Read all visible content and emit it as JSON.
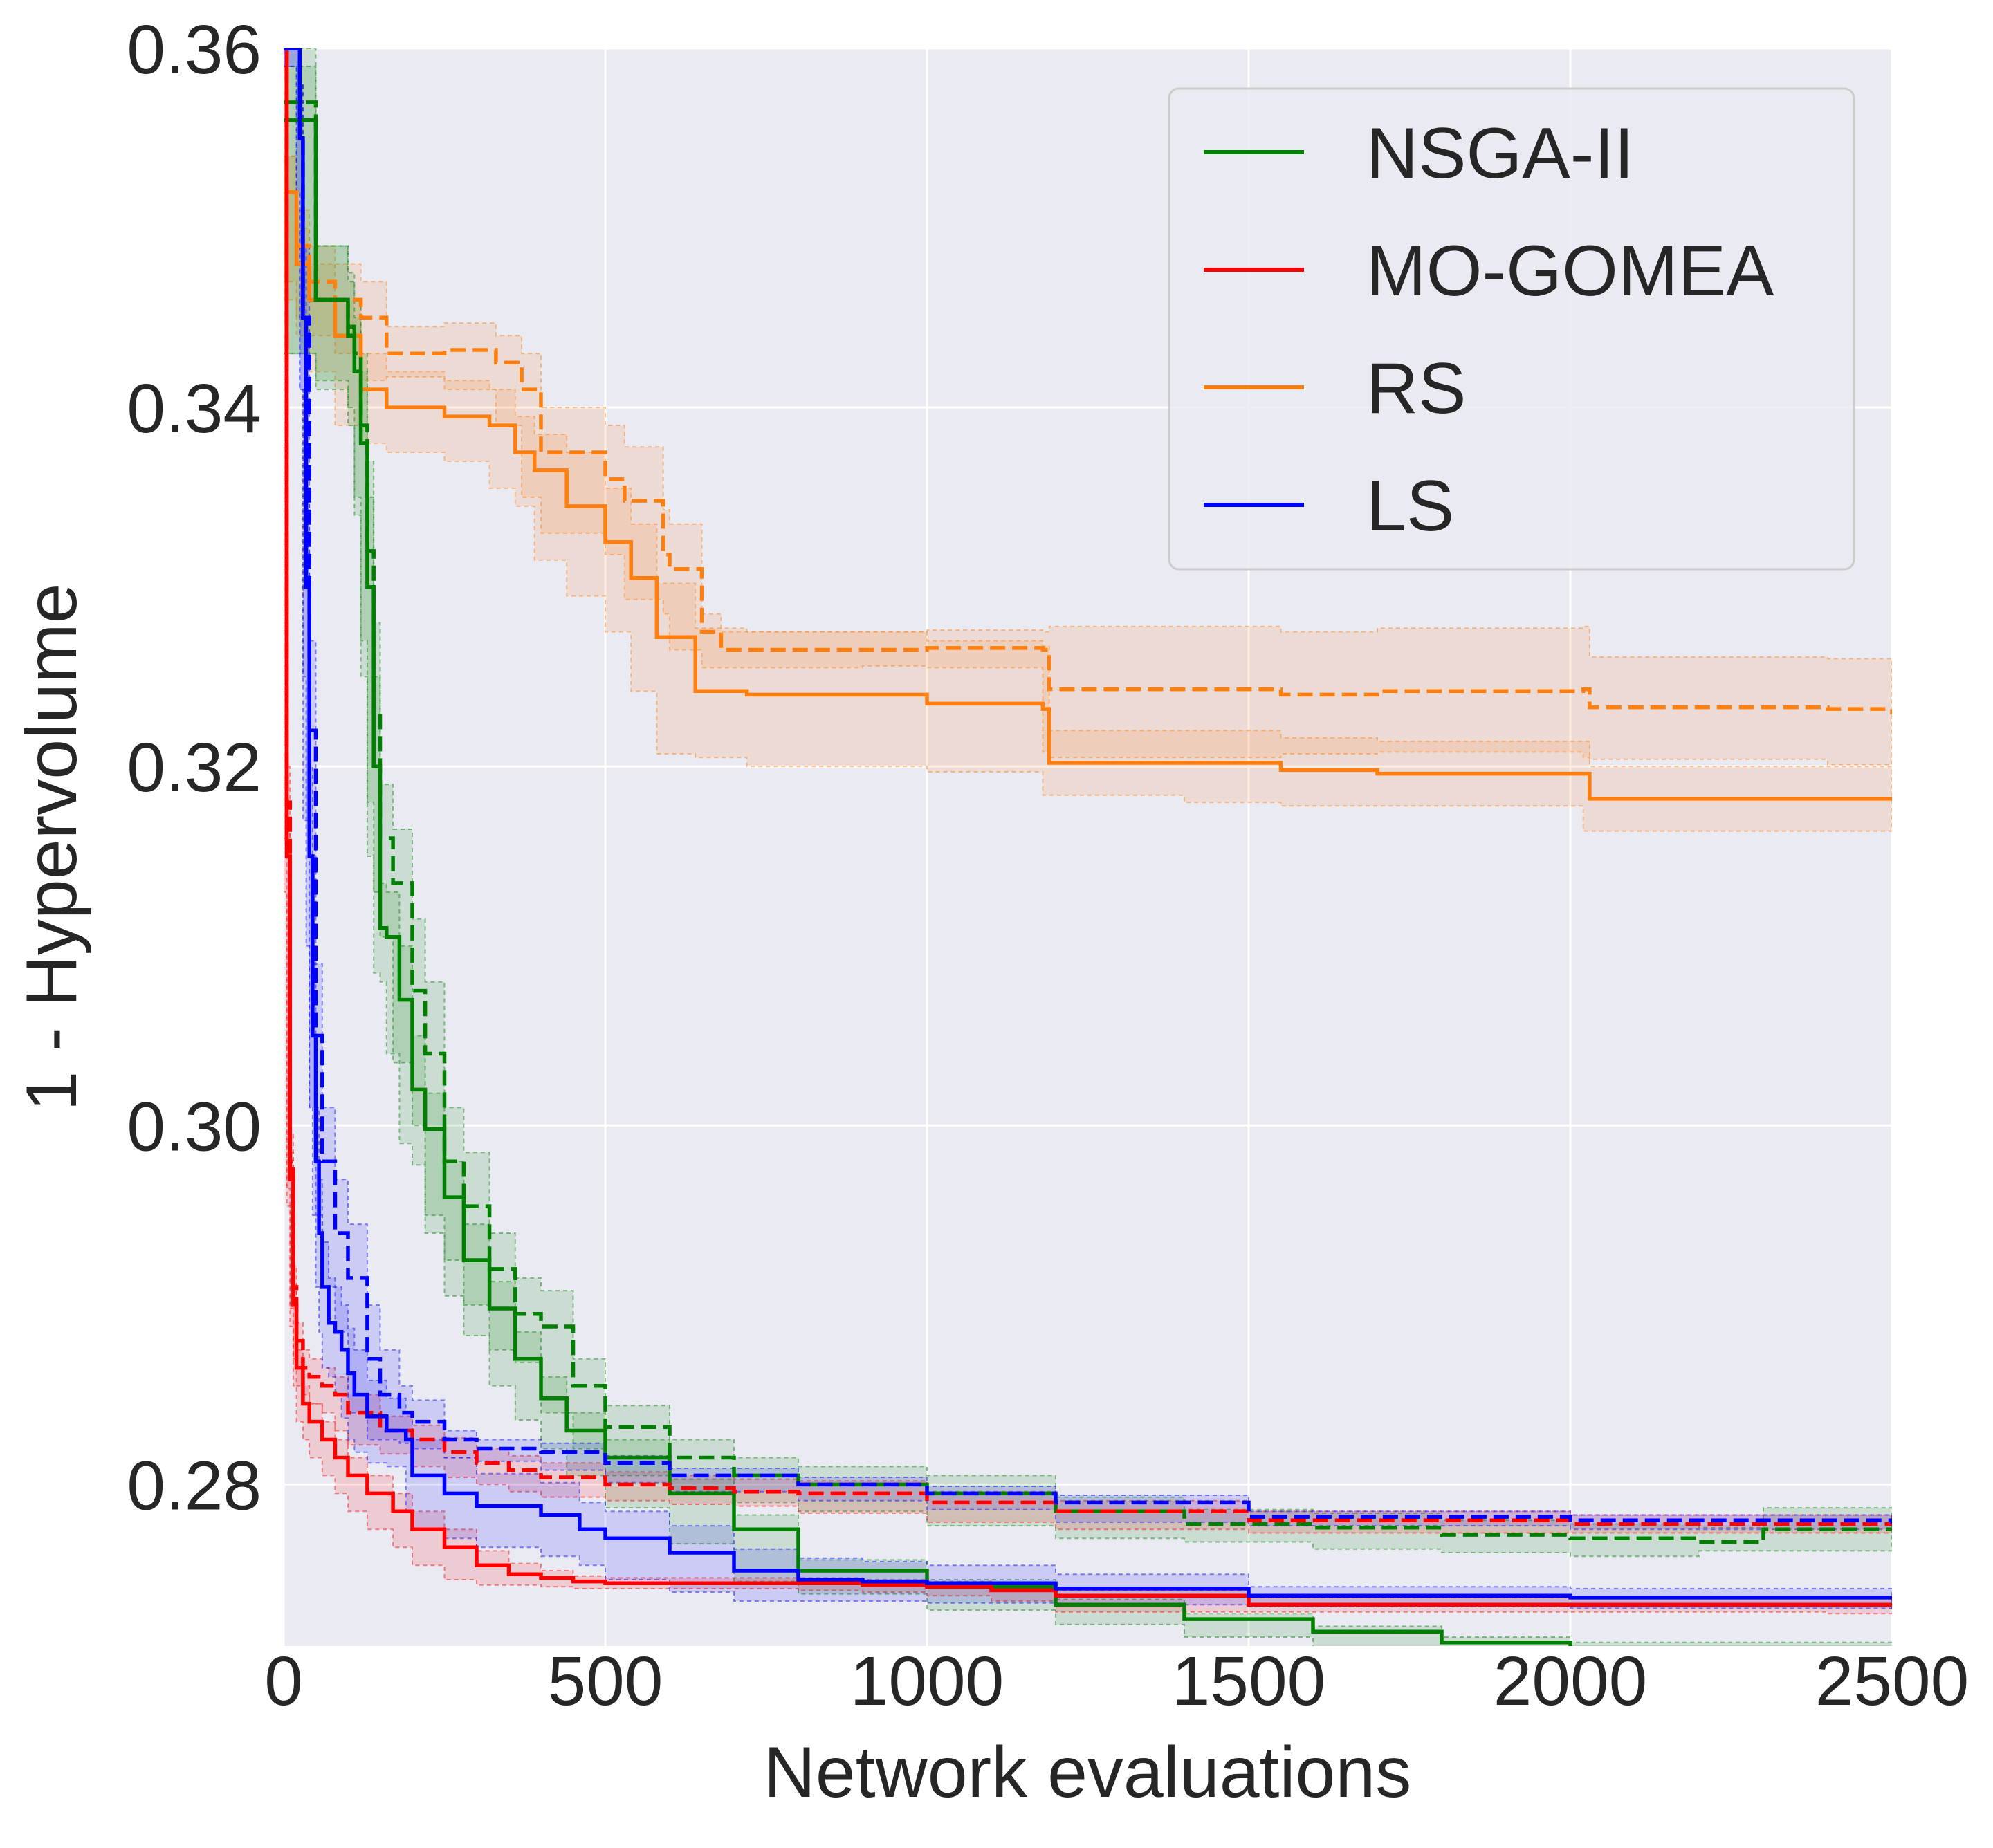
{
  "chart_data": {
    "type": "line",
    "title": "",
    "xlabel": "Network evaluations",
    "ylabel": "1 - Hypervolume",
    "xlim": [
      0,
      2500
    ],
    "ylim": [
      0.271,
      0.36
    ],
    "xticks": [
      0,
      500,
      1000,
      1500,
      2000,
      2500
    ],
    "xtick_labels": [
      "0",
      "500",
      "1000",
      "1500",
      "2000",
      "2500"
    ],
    "yticks": [
      0.28,
      0.3,
      0.32,
      0.34,
      0.36
    ],
    "ytick_labels": [
      "0.28",
      "0.30",
      "0.32",
      "0.34",
      "0.36"
    ],
    "grid": true,
    "background": "#eaeaf2",
    "legend_position": "top-right",
    "legend": [
      {
        "name": "NSGA-II",
        "color": "#008000"
      },
      {
        "name": "MO-GOMEA",
        "color": "#ff0000"
      },
      {
        "name": "RS",
        "color": "#ff7f0e"
      },
      {
        "name": "LS",
        "color": "#0000ff"
      }
    ],
    "series": [
      {
        "legend": "RS",
        "style": "solid",
        "color": "#ff7f0e",
        "x": [
          0,
          20,
          40,
          80,
          120,
          160,
          250,
          320,
          360,
          390,
          440,
          500,
          540,
          580,
          640,
          720,
          1000,
          1180,
          1190,
          1400,
          1550,
          1700,
          2020,
          2030,
          2500
        ],
        "y": [
          0.352,
          0.348,
          0.346,
          0.344,
          0.341,
          0.34,
          0.3395,
          0.339,
          0.3375,
          0.3365,
          0.3345,
          0.3325,
          0.3305,
          0.3272,
          0.3242,
          0.324,
          0.3235,
          0.3232,
          0.3202,
          0.3202,
          0.3198,
          0.3196,
          0.3196,
          0.3182,
          0.3182
        ],
        "band": [
          0.002,
          0.002,
          0.002,
          0.002,
          0.002,
          0.002,
          0.002,
          0.002,
          0.002,
          0.002,
          0.003,
          0.003,
          0.003,
          0.003,
          0.0035,
          0.0035,
          0.0035,
          0.0035,
          0.0018,
          0.0018,
          0.0018,
          0.0018,
          0.0018,
          0.0018,
          0.0018
        ]
      },
      {
        "legend": "RS",
        "style": "dashed",
        "color": "#ff7f0e",
        "x": [
          0,
          20,
          40,
          80,
          120,
          160,
          250,
          330,
          370,
          400,
          500,
          530,
          590,
          600,
          650,
          680,
          900,
          1000,
          1180,
          1190,
          1550,
          1700,
          2020,
          2030,
          2400,
          2500
        ],
        "y": [
          0.352,
          0.349,
          0.347,
          0.346,
          0.345,
          0.343,
          0.3432,
          0.3425,
          0.341,
          0.3375,
          0.336,
          0.3348,
          0.3318,
          0.331,
          0.3275,
          0.3265,
          0.3265,
          0.3266,
          0.3265,
          0.3243,
          0.324,
          0.3242,
          0.3243,
          0.3233,
          0.3232,
          0.3229
        ],
        "band": [
          0.002,
          0.002,
          0.002,
          0.002,
          0.002,
          0.0015,
          0.0015,
          0.0015,
          0.002,
          0.0025,
          0.003,
          0.003,
          0.0025,
          0.0025,
          0.001,
          0.001,
          0.001,
          0.001,
          0.001,
          0.0035,
          0.0035,
          0.0035,
          0.0035,
          0.0028,
          0.0028,
          0.0028
        ]
      },
      {
        "legend": "NSGA-II",
        "style": "solid",
        "color": "#008000",
        "x": [
          0,
          50,
          100,
          110,
          120,
          130,
          140,
          150,
          160,
          180,
          200,
          220,
          250,
          280,
          320,
          360,
          400,
          440,
          500,
          600,
          700,
          800,
          1000,
          1200,
          1400,
          1600,
          1800,
          2000,
          2200,
          2500
        ],
        "y": [
          0.356,
          0.346,
          0.344,
          0.342,
          0.338,
          0.33,
          0.32,
          0.311,
          0.3105,
          0.307,
          0.302,
          0.2998,
          0.296,
          0.2925,
          0.2898,
          0.287,
          0.2848,
          0.283,
          0.2815,
          0.2795,
          0.2775,
          0.2752,
          0.2743,
          0.2733,
          0.2725,
          0.2718,
          0.2712,
          0.2709,
          0.2709,
          0.2708
        ],
        "band": [
          0.003,
          0.003,
          0.003,
          0.003,
          0.004,
          0.005,
          0.005,
          0.0025,
          0.0025,
          0.003,
          0.003,
          0.002,
          0.002,
          0.002,
          0.0015,
          0.0015,
          0.0012,
          0.001,
          0.001,
          0.0008,
          0.0008,
          0.0006,
          0.0004,
          0.0003,
          0.0003,
          0.0003,
          0.0003,
          0.0003,
          0.0003,
          0.0003
        ]
      },
      {
        "legend": "NSGA-II",
        "style": "dashed",
        "color": "#008000",
        "x": [
          0,
          50,
          100,
          110,
          120,
          130,
          140,
          150,
          170,
          200,
          220,
          250,
          280,
          320,
          360,
          400,
          450,
          500,
          600,
          700,
          800,
          1000,
          1200,
          1400,
          1600,
          1800,
          2000,
          2200,
          2300,
          2500
        ],
        "y": [
          0.357,
          0.346,
          0.3445,
          0.343,
          0.339,
          0.332,
          0.323,
          0.316,
          0.3135,
          0.3075,
          0.304,
          0.298,
          0.2955,
          0.292,
          0.2895,
          0.2888,
          0.2855,
          0.2832,
          0.2815,
          0.2805,
          0.28,
          0.2795,
          0.2785,
          0.2778,
          0.2776,
          0.2772,
          0.277,
          0.2768,
          0.2775,
          0.2775
        ],
        "band": [
          0.003,
          0.003,
          0.003,
          0.003,
          0.004,
          0.005,
          0.005,
          0.003,
          0.003,
          0.004,
          0.004,
          0.003,
          0.003,
          0.002,
          0.002,
          0.002,
          0.0015,
          0.0012,
          0.001,
          0.001,
          0.001,
          0.001,
          0.0008,
          0.0008,
          0.0008,
          0.0008,
          0.0008,
          0.0008,
          0.0012,
          0.0012
        ]
      },
      {
        "legend": "MO-GOMEA",
        "style": "solid",
        "color": "#ff0000",
        "x": [
          0,
          5,
          10,
          15,
          20,
          30,
          40,
          60,
          80,
          100,
          130,
          170,
          200,
          250,
          300,
          350,
          400,
          450,
          500,
          600,
          700,
          800,
          900,
          1000,
          1100,
          1200,
          1500,
          2000,
          2400,
          2500
        ],
        "y": [
          0.36,
          0.315,
          0.297,
          0.29,
          0.2865,
          0.2845,
          0.2835,
          0.2825,
          0.2815,
          0.2805,
          0.2795,
          0.2785,
          0.2775,
          0.2765,
          0.2755,
          0.275,
          0.2748,
          0.2746,
          0.2745,
          0.2745,
          0.2745,
          0.2745,
          0.2744,
          0.2743,
          0.2741,
          0.2738,
          0.2733,
          0.2733,
          0.2733,
          0.2732
        ],
        "band": [
          0.0,
          0.002,
          0.0015,
          0.0012,
          0.001,
          0.001,
          0.001,
          0.001,
          0.001,
          0.001,
          0.001,
          0.001,
          0.001,
          0.001,
          0.0008,
          0.0006,
          0.0004,
          0.0003,
          0.0003,
          0.0003,
          0.0003,
          0.0003,
          0.0003,
          0.0003,
          0.0003,
          0.0003,
          0.0004,
          0.0004,
          0.0004,
          0.0004
        ]
      },
      {
        "legend": "MO-GOMEA",
        "style": "dashed",
        "color": "#ff0000",
        "x": [
          0,
          5,
          10,
          15,
          20,
          30,
          40,
          60,
          80,
          100,
          150,
          200,
          250,
          300,
          350,
          400,
          500,
          600,
          700,
          800,
          1000,
          1200,
          1500,
          2000,
          2500
        ],
        "y": [
          0.36,
          0.318,
          0.298,
          0.291,
          0.288,
          0.2865,
          0.286,
          0.2855,
          0.285,
          0.284,
          0.283,
          0.2825,
          0.2818,
          0.2812,
          0.2808,
          0.2804,
          0.28,
          0.2798,
          0.2796,
          0.2795,
          0.279,
          0.2785,
          0.278,
          0.2778,
          0.2778
        ],
        "band": [
          0.0,
          0.002,
          0.0015,
          0.0012,
          0.001,
          0.001,
          0.001,
          0.001,
          0.001,
          0.001,
          0.0008,
          0.0008,
          0.0008,
          0.0008,
          0.0008,
          0.0008,
          0.0007,
          0.0007,
          0.0007,
          0.0007,
          0.0006,
          0.0006,
          0.0005,
          0.0005,
          0.0005
        ]
      },
      {
        "legend": "LS",
        "style": "solid",
        "color": "#0000ff",
        "x": [
          0,
          20,
          25,
          30,
          35,
          40,
          45,
          50,
          55,
          60,
          70,
          80,
          90,
          100,
          110,
          130,
          160,
          190,
          200,
          250,
          300,
          400,
          460,
          500,
          600,
          700,
          800,
          900,
          1000,
          1200,
          1500,
          2000,
          2500
        ],
        "y": [
          0.36,
          0.36,
          0.355,
          0.345,
          0.33,
          0.315,
          0.305,
          0.298,
          0.294,
          0.291,
          0.289,
          0.2885,
          0.2875,
          0.2862,
          0.285,
          0.2838,
          0.283,
          0.2825,
          0.2805,
          0.2795,
          0.2788,
          0.2783,
          0.2775,
          0.277,
          0.2762,
          0.2752,
          0.2747,
          0.2746,
          0.2745,
          0.2742,
          0.2738,
          0.2737,
          0.2736
        ],
        "band": [
          0.0,
          0.001,
          0.003,
          0.004,
          0.005,
          0.005,
          0.004,
          0.003,
          0.003,
          0.0025,
          0.0025,
          0.0025,
          0.0025,
          0.0025,
          0.0025,
          0.002,
          0.0018,
          0.0015,
          0.002,
          0.002,
          0.0018,
          0.0018,
          0.0015,
          0.0015,
          0.0015,
          0.0012,
          0.0012,
          0.0011,
          0.001,
          0.0008,
          0.0005,
          0.0005,
          0.0005
        ]
      },
      {
        "legend": "LS",
        "style": "dashed",
        "color": "#0000ff",
        "x": [
          0,
          20,
          25,
          30,
          40,
          50,
          60,
          80,
          100,
          130,
          150,
          180,
          200,
          250,
          300,
          400,
          500,
          600,
          800,
          1000,
          1200,
          1500,
          2000,
          2500
        ],
        "y": [
          0.36,
          0.36,
          0.355,
          0.345,
          0.322,
          0.305,
          0.298,
          0.294,
          0.2915,
          0.287,
          0.285,
          0.284,
          0.2835,
          0.2825,
          0.282,
          0.2818,
          0.2812,
          0.2805,
          0.28,
          0.2795,
          0.279,
          0.2782,
          0.278,
          0.2778
        ],
        "band": [
          0.0,
          0.001,
          0.003,
          0.004,
          0.005,
          0.004,
          0.003,
          0.003,
          0.003,
          0.003,
          0.0025,
          0.0015,
          0.0012,
          0.0005,
          0.0005,
          0.0005,
          0.0004,
          0.0004,
          0.0004,
          0.0004,
          0.0004,
          0.0003,
          0.0003,
          0.0003
        ]
      }
    ]
  }
}
